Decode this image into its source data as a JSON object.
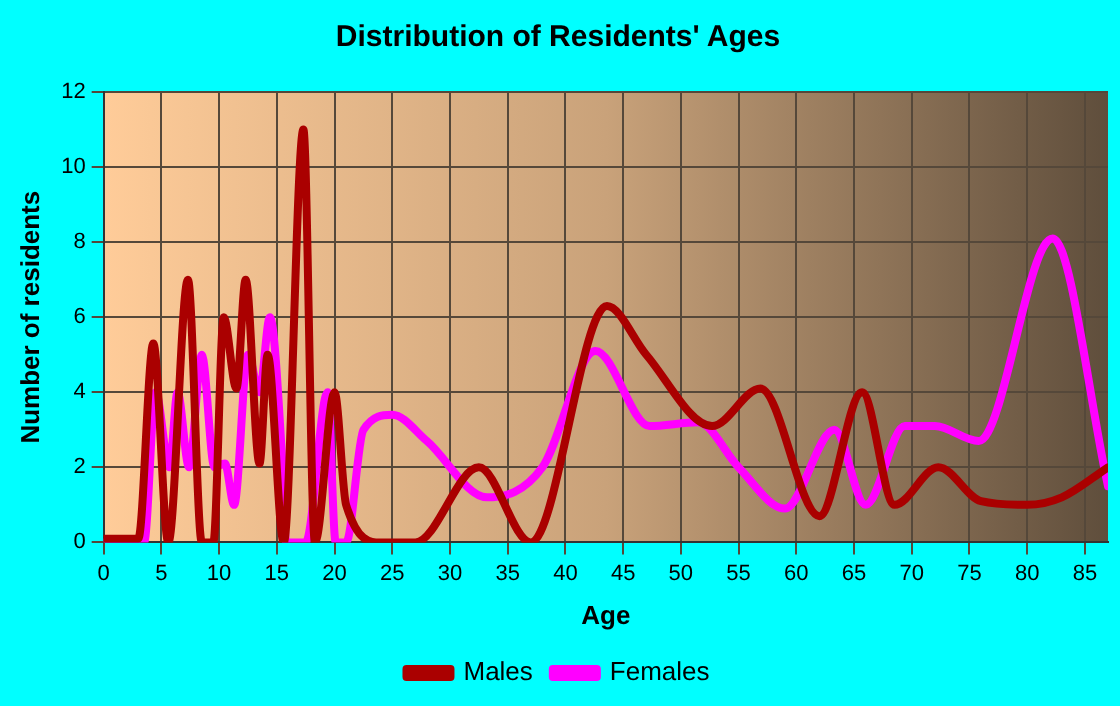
{
  "chart_data": {
    "type": "line",
    "title": "Distribution of Residents' Ages",
    "xlabel": "Age",
    "ylabel": "Number of residents",
    "xlim": [
      0,
      87
    ],
    "xticks": [
      0,
      5,
      10,
      15,
      20,
      25,
      30,
      35,
      40,
      45,
      50,
      55,
      60,
      65,
      70,
      75,
      80,
      85
    ],
    "ylim": [
      0,
      12
    ],
    "yticks": [
      0,
      2,
      4,
      6,
      8,
      10,
      12
    ],
    "grid": true,
    "legend": "bottom",
    "marker": "none",
    "line_style": "solid",
    "series": [
      {
        "name": "Males",
        "color": "#aa0000",
        "x": [
          0,
          3,
          4.3,
          5.6,
          7.3,
          8.5,
          9.5,
          10.4,
          11.5,
          12.3,
          13.5,
          14.2,
          15.6,
          17.3,
          18.3,
          20,
          21,
          24,
          27,
          32.5,
          37,
          43.6,
          47,
          52.7,
          56.9,
          62,
          65.7,
          68.5,
          72.3,
          76,
          80,
          83,
          87
        ],
        "values": [
          0.1,
          0.1,
          5.3,
          0,
          7,
          0,
          0,
          6,
          4.1,
          7,
          2.1,
          5,
          0,
          11,
          0,
          4,
          1,
          0,
          0,
          2,
          0,
          6.3,
          5,
          3.1,
          4.1,
          0.7,
          4,
          1,
          2,
          1.1,
          1,
          1.2,
          2
        ]
      },
      {
        "name": "Females",
        "color": "#ff00ff",
        "x": [
          0,
          3.5,
          4.5,
          5.7,
          6.4,
          7.4,
          8.5,
          9.6,
          10.5,
          11.3,
          12.5,
          13.5,
          14.4,
          15.5,
          15.8,
          17.5,
          19.4,
          20.1,
          21,
          22.5,
          25,
          28,
          33.2,
          38,
          42.6,
          47.3,
          51.5,
          55,
          59,
          63.3,
          66,
          69.4,
          72,
          75.8,
          82.2,
          87
        ],
        "values": [
          0,
          0,
          4,
          2,
          4,
          2,
          5,
          2,
          2.1,
          1,
          5,
          4,
          6,
          2,
          0,
          0,
          4,
          0,
          0,
          3,
          3.4,
          2.7,
          1.2,
          2,
          5.1,
          3.1,
          3.2,
          2,
          0.9,
          3,
          1,
          3.1,
          3.1,
          2.7,
          8.1,
          1.5
        ]
      }
    ]
  }
}
